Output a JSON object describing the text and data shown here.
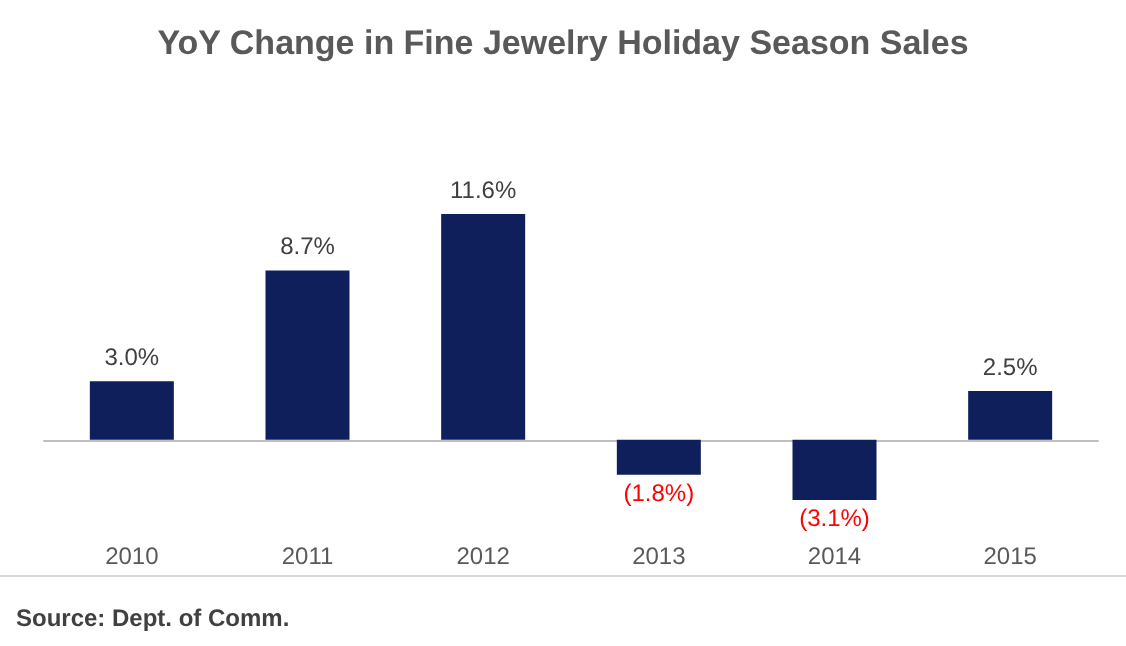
{
  "chart_data": {
    "type": "bar",
    "title": "YoY Change in Fine Jewelry Holiday Season Sales",
    "categories": [
      "2010",
      "2011",
      "2012",
      "2013",
      "2014",
      "2015"
    ],
    "series": [
      {
        "color": "#0e1f5b",
        "values": [
          3.0,
          8.7,
          11.6,
          -1.8,
          -3.1,
          2.5
        ],
        "value_labels": [
          "3.0%",
          "8.7%",
          "11.6%",
          "(1.8%)",
          "(3.1%)",
          "2.5%"
        ]
      }
    ],
    "annotations": [
      "Source: Dept. of Comm."
    ],
    "grid": false
  }
}
